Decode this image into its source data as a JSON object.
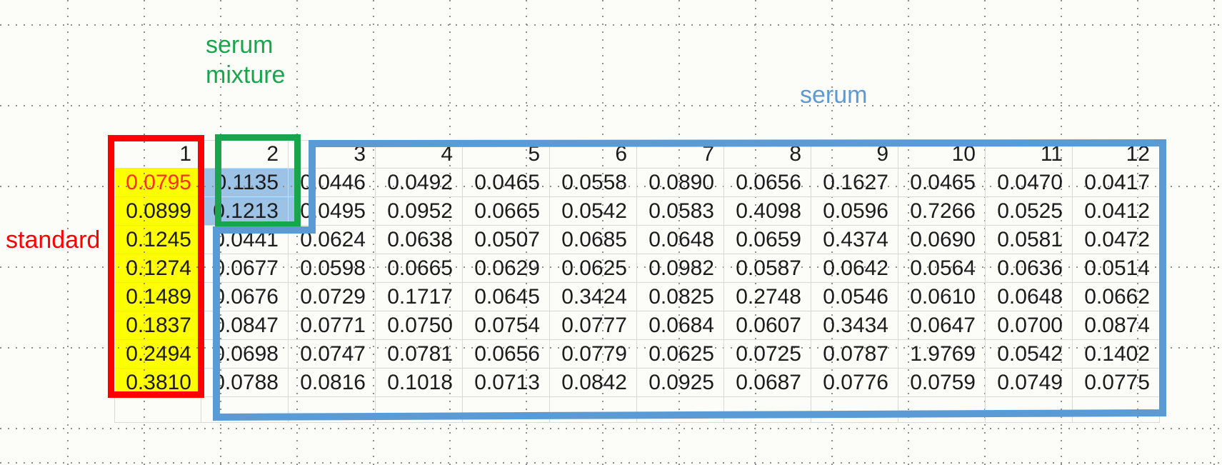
{
  "background_color": "#fcfcf9",
  "grid": {
    "dot_color": "#8f8f8f",
    "cell_line_color": "#d9d9d9",
    "text_color": "#1c1c1c"
  },
  "annotations": {
    "standard": {
      "text": "standard",
      "color": "#ff0000"
    },
    "serum_mixture": {
      "line1": "serum",
      "line2": "mixture",
      "color": "#1aa54c"
    },
    "serum": {
      "text": "serum",
      "color": "#5b9bd5"
    }
  },
  "highlights": {
    "standard_fill": "#ffff00",
    "standard_box_color": "#ff0000",
    "standard_first_value_color": "#ff3018",
    "mixture_fill": "#9cc2e5",
    "mixture_box_color": "#1aa54c",
    "serum_region_color": "#5b9bd5"
  },
  "table": {
    "columns": [
      "1",
      "2",
      "3",
      "4",
      "5",
      "6",
      "7",
      "8",
      "9",
      "10",
      "11",
      "12"
    ],
    "rows": [
      [
        "0.0795",
        "0.1135",
        "0.0446",
        "0.0492",
        "0.0465",
        "0.0558",
        "0.0890",
        "0.0656",
        "0.1627",
        "0.0465",
        "0.0470",
        "0.0417"
      ],
      [
        "0.0899",
        "0.1213",
        "0.0495",
        "0.0952",
        "0.0665",
        "0.0542",
        "0.0583",
        "0.4098",
        "0.0596",
        "0.7266",
        "0.0525",
        "0.0412"
      ],
      [
        "0.1245",
        "0.0441",
        "0.0624",
        "0.0638",
        "0.0507",
        "0.0685",
        "0.0648",
        "0.0659",
        "0.4374",
        "0.0690",
        "0.0581",
        "0.0472"
      ],
      [
        "0.1274",
        "0.0677",
        "0.0598",
        "0.0665",
        "0.0629",
        "0.0625",
        "0.0982",
        "0.0587",
        "0.0642",
        "0.0564",
        "0.0636",
        "0.0514"
      ],
      [
        "0.1489",
        "0.0676",
        "0.0729",
        "0.1717",
        "0.0645",
        "0.3424",
        "0.0825",
        "0.2748",
        "0.0546",
        "0.0610",
        "0.0648",
        "0.0662"
      ],
      [
        "0.1837",
        "0.0847",
        "0.0771",
        "0.0750",
        "0.0754",
        "0.0777",
        "0.0684",
        "0.0607",
        "0.3434",
        "0.0647",
        "0.0700",
        "0.0874"
      ],
      [
        "0.2494",
        "0.0698",
        "0.0747",
        "0.0781",
        "0.0656",
        "0.0779",
        "0.0625",
        "0.0725",
        "0.0787",
        "1.9769",
        "0.0542",
        "0.1402"
      ],
      [
        "0.3810",
        "0.0788",
        "0.0816",
        "0.1018",
        "0.0713",
        "0.0842",
        "0.0925",
        "0.0687",
        "0.0776",
        "0.0759",
        "0.0749",
        "0.0775"
      ]
    ]
  }
}
